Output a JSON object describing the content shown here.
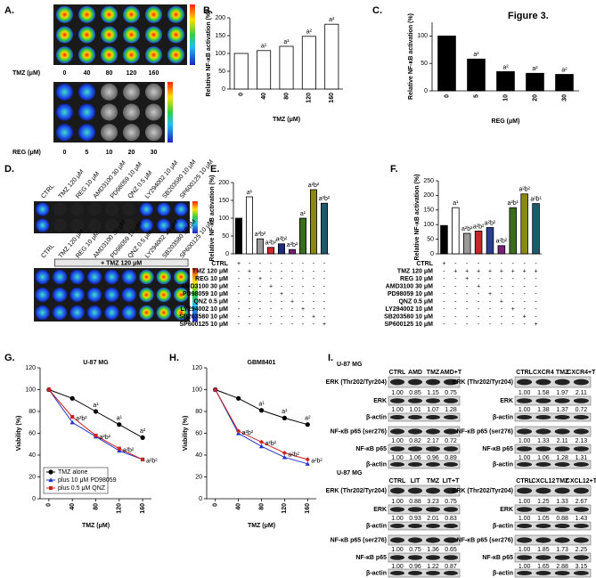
{
  "figure_label": "Figure 3.",
  "panel_labels": [
    "A.",
    "B.",
    "C.",
    "D.",
    "E.",
    "F.",
    "G.",
    "H.",
    "I."
  ],
  "panel_A": {
    "tmz_label": "TMZ (μM)",
    "tmz_doses": [
      "0",
      "40",
      "80",
      "120",
      "160"
    ],
    "reg_label": "REG (μM)",
    "reg_doses": [
      "0",
      "5",
      "10",
      "20",
      "30"
    ]
  },
  "panel_D": {
    "columns": [
      "CTRL",
      "TMZ 120 μM",
      "REG 10 μM",
      "AMD3100 30 μM",
      "PD98059 10 μM",
      "QNZ 0.5 μM",
      "LY294002 10 μM",
      "SB203580 10 μM",
      "SP600125 10 μM"
    ],
    "overlay": "+ TMZ 120 μM"
  },
  "chart_data": [
    {
      "type": "bar",
      "ylabel": "Relative NF-κB activation (%)",
      "xlabel": "TMZ (μM)",
      "categories": [
        "0",
        "40",
        "80",
        "120",
        "160"
      ],
      "values": [
        100,
        108,
        120,
        148,
        182
      ],
      "color": "#ffffff",
      "sig": [
        null,
        "a¹",
        "a¹",
        "a²",
        "a²"
      ],
      "ylim": [
        0,
        200
      ],
      "yticks": [
        0,
        50,
        100,
        150,
        200
      ]
    },
    {
      "type": "bar",
      "ylabel": "Relative NF-κB activation (%)",
      "xlabel": "REG (μM)",
      "categories": [
        "0",
        "5",
        "10",
        "20",
        "30"
      ],
      "values": [
        100,
        58,
        35,
        32,
        30
      ],
      "color": "#000000",
      "sig": [
        null,
        "a²",
        "a²",
        "a²",
        "a²"
      ],
      "ylim": [
        0,
        125
      ],
      "yticks": [
        0,
        50,
        100
      ]
    },
    {
      "type": "bar",
      "ylabel": "Relative NF-κB activation (%)",
      "values": [
        100,
        160,
        42,
        18,
        28,
        12,
        100,
        180,
        142
      ],
      "colors": [
        "#000000",
        "#ffffff",
        "#999999",
        "#d02828",
        "#1f2a80",
        "#7a1f7a",
        "#3a6e1e",
        "#8a8a10",
        "#1e5a6e"
      ],
      "sig": [
        null,
        "a¹",
        "a²b²",
        "a²b²",
        "a²b²",
        "a²b²",
        "a¹",
        "a²b²",
        "a²b²"
      ],
      "ylim": [
        0,
        200
      ],
      "yticks": [
        0,
        50,
        100,
        150,
        200
      ],
      "treatments": [
        {
          "name": "CTRL",
          "signs": [
            "+",
            "-",
            "-",
            "-",
            "-",
            "-",
            "-",
            "-",
            "-"
          ]
        },
        {
          "name": "TMZ 120 μM",
          "signs": [
            "-",
            "+",
            "-",
            "-",
            "-",
            "-",
            "-",
            "-",
            "-"
          ]
        },
        {
          "name": "REG 10 μM",
          "signs": [
            "-",
            "-",
            "+",
            "-",
            "-",
            "-",
            "-",
            "-",
            "-"
          ]
        },
        {
          "name": "AMD3100 30 μM",
          "signs": [
            "-",
            "-",
            "-",
            "+",
            "-",
            "-",
            "-",
            "-",
            "-"
          ]
        },
        {
          "name": "PD98059 10 μM",
          "signs": [
            "-",
            "-",
            "-",
            "-",
            "+",
            "-",
            "-",
            "-",
            "-"
          ]
        },
        {
          "name": "QNZ 0.5 μM",
          "signs": [
            "-",
            "-",
            "-",
            "-",
            "-",
            "+",
            "-",
            "-",
            "-"
          ]
        },
        {
          "name": "LY294002 10 μM",
          "signs": [
            "-",
            "-",
            "-",
            "-",
            "-",
            "-",
            "+",
            "-",
            "-"
          ]
        },
        {
          "name": "SB203580 10 μM",
          "signs": [
            "-",
            "-",
            "-",
            "-",
            "-",
            "-",
            "-",
            "+",
            "-"
          ]
        },
        {
          "name": "SP600125 10 μM",
          "signs": [
            "-",
            "-",
            "-",
            "-",
            "-",
            "-",
            "-",
            "-",
            "+"
          ]
        }
      ]
    },
    {
      "type": "bar",
      "ylabel": "Relative NF-κB activation (%)",
      "values": [
        97,
        158,
        70,
        78,
        90,
        28,
        158,
        205,
        172
      ],
      "colors": [
        "#000000",
        "#ffffff",
        "#999999",
        "#c0282a",
        "#2a3d8f",
        "#7a1f7a",
        "#3a6e1e",
        "#8a8a10",
        "#1e5a6e"
      ],
      "sig": [
        null,
        "a¹",
        "a²b²",
        "a²b²",
        "a²b²",
        "a²b²",
        "a²b¹",
        "a²b²",
        "a²b¹"
      ],
      "ylim": [
        0,
        250
      ],
      "yticks": [
        0,
        50,
        100,
        150,
        200,
        250
      ],
      "treatments": [
        {
          "name": "CTRL",
          "signs": [
            "+",
            "-",
            "-",
            "-",
            "-",
            "-",
            "-",
            "-",
            "-"
          ]
        },
        {
          "name": "TMZ 120 μM",
          "signs": [
            "-",
            "+",
            "+",
            "+",
            "+",
            "+",
            "+",
            "+",
            "+"
          ]
        },
        {
          "name": "REG 10 μM",
          "signs": [
            "-",
            "-",
            "+",
            "-",
            "-",
            "-",
            "-",
            "-",
            "-"
          ]
        },
        {
          "name": "AMD3100 30 μM",
          "signs": [
            "-",
            "-",
            "-",
            "+",
            "-",
            "-",
            "-",
            "-",
            "-"
          ]
        },
        {
          "name": "PD98059 10 μM",
          "signs": [
            "-",
            "-",
            "-",
            "-",
            "+",
            "-",
            "-",
            "-",
            "-"
          ]
        },
        {
          "name": "QNZ 0.5 μM",
          "signs": [
            "-",
            "-",
            "-",
            "-",
            "-",
            "+",
            "-",
            "-",
            "-"
          ]
        },
        {
          "name": "LY294002 10 μM",
          "signs": [
            "-",
            "-",
            "-",
            "-",
            "-",
            "-",
            "+",
            "-",
            "-"
          ]
        },
        {
          "name": "SB203580 10 μM",
          "signs": [
            "-",
            "-",
            "-",
            "-",
            "-",
            "-",
            "-",
            "+",
            "-"
          ]
        },
        {
          "name": "SP600125 10 μM",
          "signs": [
            "-",
            "-",
            "-",
            "-",
            "-",
            "-",
            "-",
            "-",
            "+"
          ]
        }
      ]
    },
    {
      "type": "line",
      "title": "U-87 MG",
      "ylabel": "Viability (%)",
      "xlabel": "TMZ (μM)",
      "x": [
        0,
        40,
        80,
        120,
        160
      ],
      "xlim": [
        -15,
        175
      ],
      "xticks": [
        0,
        40,
        80,
        120,
        160
      ],
      "ylim": [
        0,
        120
      ],
      "yticks": [
        0,
        20,
        40,
        60,
        80,
        100,
        120
      ],
      "legend": "lower left",
      "series": [
        {
          "name": "TMZ alone",
          "color": "#000000",
          "marker": "circle",
          "values": [
            100,
            92,
            80,
            68,
            56
          ],
          "sig": [
            null,
            null,
            "a¹",
            "a¹",
            "a²"
          ]
        },
        {
          "name": "plus 10 μM PD98059",
          "color": "#2233cc",
          "marker": "triangle",
          "values": [
            100,
            70,
            57,
            44,
            36
          ]
        },
        {
          "name": "plus 0.5 μM QNZ",
          "color": "#cc2222",
          "marker": "square",
          "values": [
            100,
            75,
            58,
            46,
            36
          ],
          "sig": [
            null,
            "a²b²",
            "a²b²",
            "a²b²",
            "a²b²"
          ]
        }
      ]
    },
    {
      "type": "line",
      "title": "GBM8401",
      "ylabel": "Viability (%)",
      "xlabel": "TMZ (μM)",
      "x": [
        0,
        40,
        80,
        120,
        160
      ],
      "xlim": [
        -15,
        175
      ],
      "xticks": [
        0,
        40,
        80,
        120,
        160
      ],
      "ylim": [
        0,
        120
      ],
      "yticks": [
        0,
        20,
        40,
        60,
        80,
        100,
        120
      ],
      "series": [
        {
          "name": "TMZ alone",
          "color": "#000000",
          "marker": "circle",
          "values": [
            100,
            92,
            81,
            74,
            68
          ],
          "sig": [
            null,
            null,
            "a¹",
            "a¹",
            "a²"
          ]
        },
        {
          "name": "plus 10 μM PD98059",
          "color": "#2233cc",
          "marker": "triangle",
          "values": [
            100,
            60,
            48,
            38,
            32
          ]
        },
        {
          "name": "plus 0.5 μM QNZ",
          "color": "#cc2222",
          "marker": "diamond",
          "values": [
            100,
            62,
            52,
            42,
            36
          ],
          "sig": [
            null,
            "a²b²",
            "a²b²",
            "a²b²",
            "a²b²"
          ]
        }
      ]
    }
  ],
  "blots": [
    {
      "cell_line": "U-87 MG",
      "columns": [
        "CTRL",
        "AMD",
        "TMZ",
        "AMD+T"
      ],
      "rows": [
        {
          "label": "ERK (Thr202/Tyr204)",
          "values": [
            "1.00",
            "0.85",
            "1.15",
            "0.75"
          ]
        },
        {
          "label": "ERK",
          "values": [
            "1.00",
            "1.01",
            "1.07",
            "1.28"
          ]
        },
        {
          "label": "β-actin"
        },
        {
          "label": "NF-κB p65 (ser276)",
          "values": [
            "1.00",
            "0.82",
            "2.17",
            "0.72"
          ]
        },
        {
          "label": "NF-κB p65",
          "values": [
            "1.00",
            "1.06",
            "0.96",
            "0.89"
          ]
        },
        {
          "label": "β-actin"
        }
      ]
    },
    {
      "columns": [
        "CTRL",
        "CXCR4",
        "TMZ",
        "CXCR4+T"
      ],
      "rows": [
        {
          "label": "ERK (Thr202/Tyr204)",
          "values": [
            "1.00",
            "1.58",
            "1.97",
            "2.11"
          ]
        },
        {
          "label": "ERK",
          "values": [
            "1.00",
            "1.38",
            "1.37",
            "0.72"
          ]
        },
        {
          "label": "β-actin"
        },
        {
          "label": "NF-κB p65 (ser276)",
          "values": [
            "1.00",
            "1.33",
            "2.11",
            "2.13"
          ]
        },
        {
          "label": "NF-κB p65",
          "values": [
            "1.00",
            "1.06",
            "1.28",
            "1.31"
          ]
        },
        {
          "label": "β-actin"
        }
      ]
    },
    {
      "cell_line": "U-87 MG",
      "columns": [
        "CTRL",
        "LIT",
        "TMZ",
        "LIT+T"
      ],
      "rows": [
        {
          "label": "ERK (Thr202/Tyr204)",
          "values": [
            "1.00",
            "0.88",
            "3.23",
            "0.75"
          ]
        },
        {
          "label": "ERK",
          "values": [
            "1.00",
            "0.93",
            "2.01",
            "0.83"
          ]
        },
        {
          "label": "β-actin"
        },
        {
          "label": "NF-κB p65 (ser276)",
          "values": [
            "1.00",
            "0.75",
            "1.36",
            "0.65"
          ]
        },
        {
          "label": "NF-κB p65",
          "values": [
            "1.00",
            "0.96",
            "1.22",
            "0.87"
          ]
        },
        {
          "label": "β-actin"
        }
      ]
    },
    {
      "columns": [
        "CTRL",
        "CXCL12",
        "TMZ",
        "CXCL12+T"
      ],
      "rows": [
        {
          "label": "ERK (Thr202/Tyr204)",
          "values": [
            "1.00",
            "1.25",
            "1.33",
            "2.67"
          ]
        },
        {
          "label": "ERK",
          "values": [
            "1.00",
            "1.05",
            "0.88",
            "1.43"
          ]
        },
        {
          "label": "β-actin"
        },
        {
          "label": "NF-κB p65 (ser276)",
          "values": [
            "1.00",
            "1.85",
            "1.73",
            "2.25"
          ]
        },
        {
          "label": "NF-κB p65",
          "values": [
            "1.00",
            "1.65",
            "2.88",
            "3.15"
          ]
        },
        {
          "label": "β-actin"
        }
      ]
    }
  ]
}
